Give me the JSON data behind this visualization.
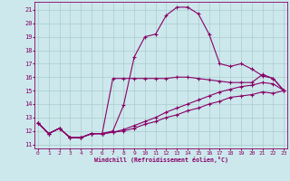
{
  "xlabel": "Windchill (Refroidissement éolien,°C)",
  "background_color": "#cce8ec",
  "grid_color": "#aacccc",
  "line_color": "#880066",
  "x_ticks": [
    0,
    1,
    2,
    3,
    4,
    5,
    6,
    7,
    8,
    9,
    10,
    11,
    12,
    13,
    14,
    15,
    16,
    17,
    18,
    19,
    20,
    21,
    22,
    23
  ],
  "y_ticks": [
    11,
    12,
    13,
    14,
    15,
    16,
    17,
    18,
    19,
    20,
    21
  ],
  "ylim": [
    10.7,
    21.6
  ],
  "xlim": [
    -0.3,
    23.3
  ],
  "series": [
    {
      "x": [
        0,
        1,
        2,
        3,
        4,
        5,
        6,
        7,
        8,
        9,
        10,
        11,
        12,
        13,
        14,
        15,
        16,
        17,
        18,
        19,
        20,
        21,
        22,
        23
      ],
      "y": [
        12.6,
        11.8,
        12.2,
        11.5,
        11.5,
        11.8,
        11.8,
        12.0,
        13.9,
        17.5,
        19.0,
        19.2,
        20.6,
        21.2,
        21.2,
        20.7,
        19.2,
        17.0,
        16.8,
        17.0,
        16.6,
        16.1,
        15.9,
        15.0
      ]
    },
    {
      "x": [
        0,
        1,
        2,
        3,
        4,
        5,
        6,
        7,
        8,
        9,
        10,
        11,
        12,
        13,
        14,
        15,
        16,
        17,
        18,
        19,
        20,
        21,
        22,
        23
      ],
      "y": [
        12.6,
        11.8,
        12.2,
        11.5,
        11.5,
        11.8,
        11.8,
        15.9,
        15.9,
        15.9,
        15.9,
        15.9,
        15.9,
        16.0,
        16.0,
        15.9,
        15.8,
        15.7,
        15.6,
        15.6,
        15.6,
        16.2,
        15.9,
        15.0
      ]
    },
    {
      "x": [
        0,
        1,
        2,
        3,
        4,
        5,
        6,
        7,
        8,
        9,
        10,
        11,
        12,
        13,
        14,
        15,
        16,
        17,
        18,
        19,
        20,
        21,
        22,
        23
      ],
      "y": [
        12.6,
        11.8,
        12.2,
        11.5,
        11.5,
        11.8,
        11.8,
        11.9,
        12.1,
        12.4,
        12.7,
        13.0,
        13.4,
        13.7,
        14.0,
        14.3,
        14.6,
        14.9,
        15.1,
        15.3,
        15.4,
        15.6,
        15.5,
        15.0
      ]
    },
    {
      "x": [
        0,
        1,
        2,
        3,
        4,
        5,
        6,
        7,
        8,
        9,
        10,
        11,
        12,
        13,
        14,
        15,
        16,
        17,
        18,
        19,
        20,
        21,
        22,
        23
      ],
      "y": [
        12.6,
        11.8,
        12.2,
        11.5,
        11.5,
        11.8,
        11.8,
        11.9,
        12.0,
        12.2,
        12.5,
        12.7,
        13.0,
        13.2,
        13.5,
        13.7,
        14.0,
        14.2,
        14.5,
        14.6,
        14.7,
        14.9,
        14.8,
        15.0
      ]
    }
  ]
}
